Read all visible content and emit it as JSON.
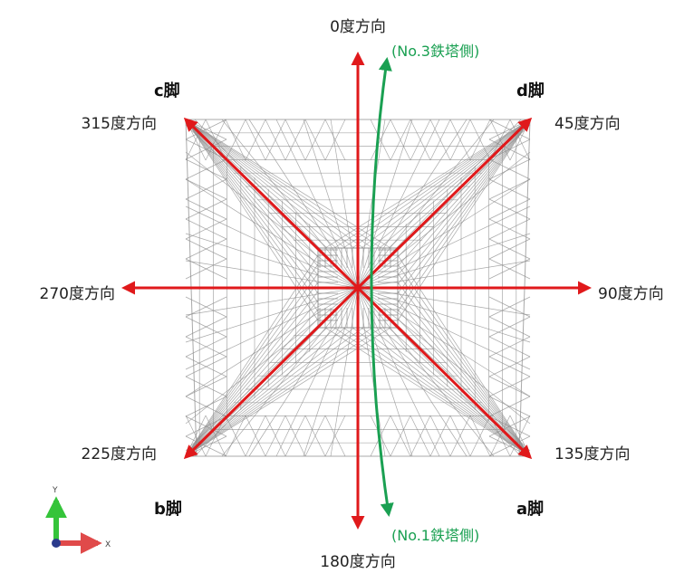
{
  "directions": {
    "d0": "0度方向",
    "d45": "45度方向",
    "d90": "90度方向",
    "d135": "135度方向",
    "d180": "180度方向",
    "d225": "225度方向",
    "d270": "270度方向",
    "d315": "315度方向"
  },
  "legs": {
    "a": "a脚",
    "b": "b脚",
    "c": "c脚",
    "d": "d脚"
  },
  "towers": {
    "north": "(No.3鉄塔側)",
    "south": "(No.1鉄塔側)"
  },
  "axes": {
    "y": "Y",
    "x": "X"
  },
  "colors": {
    "arrow": "#e0191b",
    "tower_line": "#1aa052",
    "structure": "#8c8c8c",
    "axis_y": "#35c43a",
    "axis_x": "#e04a4a",
    "origin": "#2a3a8c"
  },
  "icons": {
    "axis_triad": "xy-axis-triad-icon"
  }
}
